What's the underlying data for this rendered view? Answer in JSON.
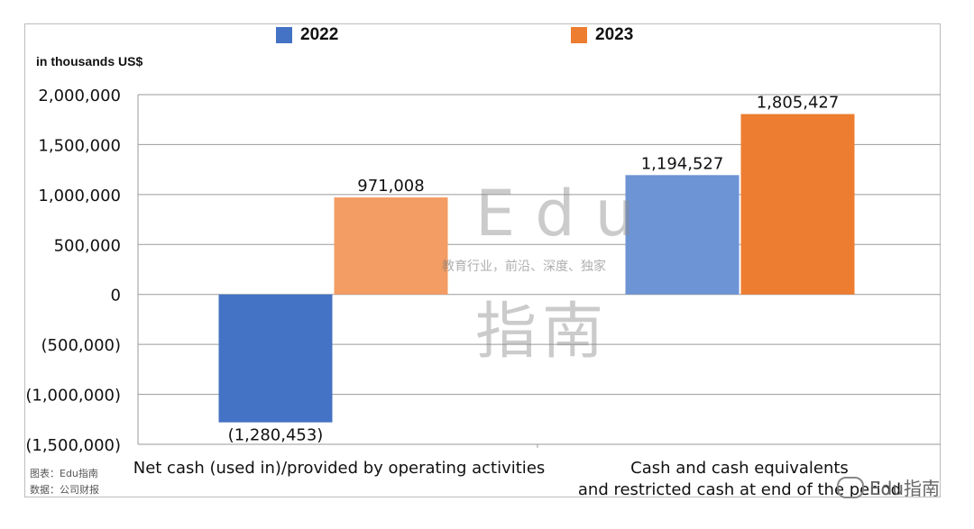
{
  "chart_data": {
    "type": "bar",
    "unit_label": "in thousands US$",
    "categories": [
      "Net cash (used in)/provided by operating activities",
      "Cash and cash equivalents and restricted cash at end of the period"
    ],
    "category_lines": [
      [
        "Net cash (used in)/provided by operating activities"
      ],
      [
        "Cash and cash equivalents",
        "and restricted cash at end of the period"
      ]
    ],
    "series": [
      {
        "name": "2022",
        "values": [
          -1280453,
          1194527
        ],
        "data_labels": [
          "(1,280,453)",
          "1,194,527"
        ],
        "colors": [
          "#4472c4",
          "#6d94d4"
        ]
      },
      {
        "name": "2023",
        "values": [
          971008,
          1805427
        ],
        "data_labels": [
          "971,008",
          "1,805,427"
        ],
        "colors": [
          "#f39c63",
          "#ed7d31"
        ]
      }
    ],
    "ylim": [
      -1500000,
      2000000
    ],
    "yticks": [
      2000000,
      1500000,
      1000000,
      500000,
      0,
      -500000,
      -1000000,
      -1500000
    ],
    "ytick_labels": [
      "2,000,000",
      "1,500,000",
      "1,000,000",
      "500,000",
      "0",
      "(500,000)",
      "(1,000,000)",
      "(1,500,000)"
    ],
    "grid": true,
    "legend_position": "top"
  },
  "source": {
    "chart_credit": "图表：Edu指南",
    "data_source": "数据：公司财报"
  },
  "watermark": {
    "brand": "Edu",
    "brand_cn": "指南",
    "tagline": "教育行业，前沿、深度、独家",
    "footer": "Edu指南"
  }
}
